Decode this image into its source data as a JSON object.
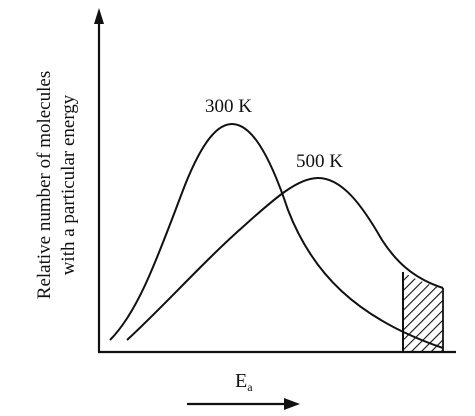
{
  "diagram": {
    "y_axis_label_line1": "Relative number of molecules",
    "y_axis_label_line2": "with a particular energy",
    "x_axis_label": "E",
    "x_axis_label_subscript": "a",
    "curves": [
      {
        "name": "300 K",
        "color": "#111111"
      },
      {
        "name": "500 K",
        "color": "#111111"
      }
    ],
    "shaded_region": "hatched area under both curves beyond threshold energy"
  }
}
